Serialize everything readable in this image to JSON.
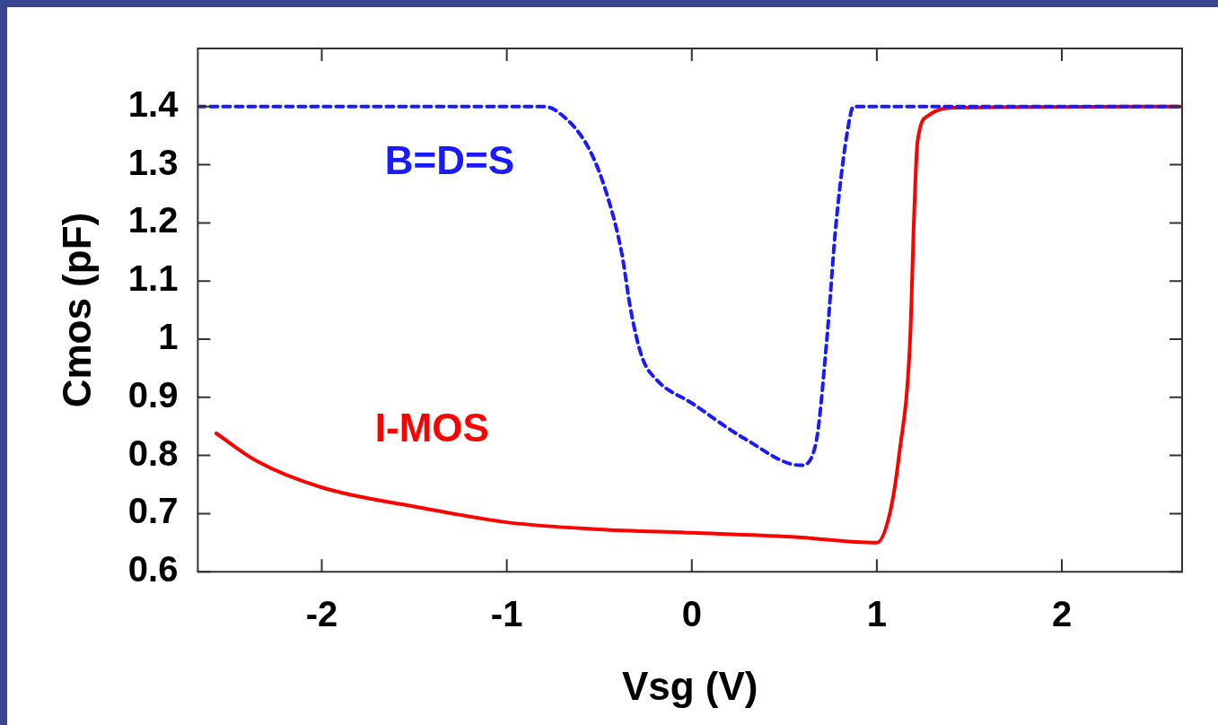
{
  "chart_data": {
    "type": "line",
    "xlabel": "Vsg (V)",
    "ylabel": "Cmos (pF)",
    "xlim": [
      -2.67,
      2.65
    ],
    "ylim": [
      0.6,
      1.5
    ],
    "xticks": [
      -2,
      -1,
      0,
      1,
      2
    ],
    "yticks": [
      0.6,
      0.7,
      0.8,
      0.9,
      1,
      1.1,
      1.2,
      1.3,
      1.4
    ],
    "grid": false,
    "legend": false,
    "marker": "none",
    "series": [
      {
        "name": "B=D=S",
        "color": "#1a1aff",
        "line_style": "dashed",
        "x": [
          -2.67,
          -0.8,
          -0.72,
          -0.56,
          -0.46,
          -0.38,
          -0.33,
          -0.27,
          -0.19,
          0,
          0.28,
          0.59,
          0.67,
          0.73,
          0.78,
          0.86,
          0.88,
          2.65
        ],
        "values": [
          1.4,
          1.4,
          1.39,
          1.33,
          1.25,
          1.15,
          1.05,
          0.97,
          0.93,
          0.89,
          0.83,
          0.783,
          0.82,
          1.0,
          1.2,
          1.39,
          1.4,
          1.4
        ]
      },
      {
        "name": "I-MOS",
        "color": "#ff0000",
        "line_style": "solid",
        "x": [
          -2.57,
          -2.35,
          -2,
          -1.46,
          -1,
          -0.5,
          0,
          0.54,
          1,
          1.07,
          1.12,
          1.18,
          1.2,
          1.22,
          1.28,
          1.42,
          2.65
        ],
        "values": [
          0.838,
          0.79,
          0.745,
          0.71,
          0.685,
          0.673,
          0.667,
          0.66,
          0.65,
          0.7,
          0.8,
          1.0,
          1.2,
          1.34,
          1.385,
          1.398,
          1.4
        ]
      }
    ]
  }
}
